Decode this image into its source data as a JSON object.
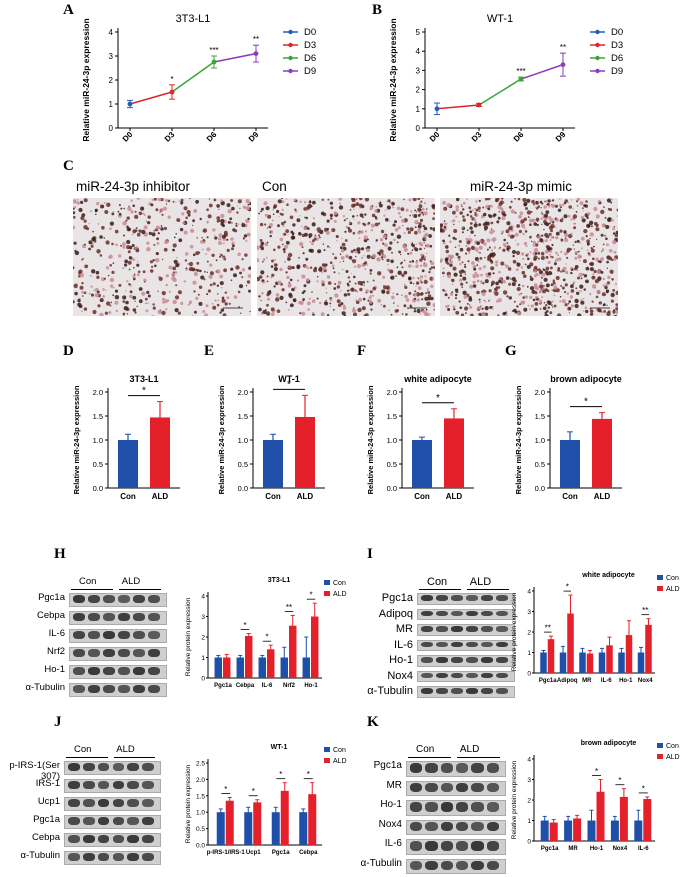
{
  "panels": {
    "A": {
      "letter": "A",
      "title": "3T3-L1",
      "ylabel": "Relative miR-24-3p expression",
      "legend": [
        "D0",
        "D3",
        "D6",
        "D9"
      ]
    },
    "B": {
      "letter": "B",
      "title": "WT-1",
      "ylabel": "Relative miR-24-3p expression",
      "legend": [
        "D0",
        "D3",
        "D6",
        "D9"
      ]
    },
    "C": {
      "letter": "C",
      "labels": [
        "miR-24-3p inhibitor",
        "Con",
        "miR-24-3p mimic"
      ]
    },
    "D": {
      "letter": "D",
      "title": "3T3-L1"
    },
    "E": {
      "letter": "E",
      "title": "WT-1"
    },
    "F": {
      "letter": "F",
      "title": "white adipocyte"
    },
    "G": {
      "letter": "G",
      "title": "brown adipocyte"
    },
    "H": {
      "letter": "H",
      "proteins": [
        "Pgc1a",
        "Cebpa",
        "IL-6",
        "Nrf2",
        "Ho-1",
        "α-Tubulin"
      ],
      "groups": [
        "Con",
        "ALD"
      ],
      "chart_title": "3T3-L1"
    },
    "I": {
      "letter": "I",
      "proteins": [
        "Pgc1a",
        "Adipoq",
        "MR",
        "IL-6",
        "Ho-1",
        "Nox4",
        "α-Tubulin"
      ],
      "groups": [
        "Con",
        "ALD"
      ],
      "chart_title": "white adipocyte"
    },
    "J": {
      "letter": "J",
      "proteins": [
        "p-IRS-1(Ser 307)",
        "IRS-1",
        "Ucp1",
        "Pgc1a",
        "Cebpa",
        "α-Tubulin"
      ],
      "groups": [
        "Con",
        "ALD"
      ],
      "chart_title": "WT-1"
    },
    "K": {
      "letter": "K",
      "proteins": [
        "Pgc1a",
        "MR",
        "Ho-1",
        "Nox4",
        "IL-6",
        "α-Tubulin"
      ],
      "groups": [
        "Con",
        "ALD"
      ],
      "chart_title": "brown adipocyte"
    }
  },
  "colors": {
    "d0": "#1f5fb5",
    "d3": "#e0252b",
    "d6": "#3aa53a",
    "d9": "#8a3cc0",
    "con": "#1f4fa8",
    "ald": "#e4202a"
  },
  "chart_data": [
    {
      "id": "A",
      "type": "line",
      "title": "3T3-L1",
      "ylabel": "Relative miR-24-3p expression",
      "x": [
        "D0",
        "D3",
        "D6",
        "D9"
      ],
      "values": [
        1.0,
        1.5,
        2.75,
        3.1
      ],
      "err": [
        0.15,
        0.3,
        0.25,
        0.35
      ],
      "ylim": [
        0,
        4
      ],
      "yticks": [
        0,
        1,
        2,
        3,
        4
      ],
      "sig": [
        "",
        "*",
        "***",
        "**"
      ]
    },
    {
      "id": "B",
      "type": "line",
      "title": "WT-1",
      "ylabel": "Relative miR-24-3p expression",
      "x": [
        "D0",
        "D3",
        "D6",
        "D9"
      ],
      "values": [
        1.0,
        1.2,
        2.55,
        3.3
      ],
      "err": [
        0.3,
        0.08,
        0.1,
        0.6
      ],
      "ylim": [
        0,
        5
      ],
      "yticks": [
        0,
        1,
        2,
        3,
        4,
        5
      ],
      "sig": [
        "",
        "",
        "***",
        "**"
      ]
    },
    {
      "id": "D",
      "type": "bar",
      "title": "3T3-L1",
      "ylabel": "Relative miR-24-3p expression",
      "categories": [
        "Con",
        "ALD"
      ],
      "values": [
        1.0,
        1.47
      ],
      "err": [
        0.12,
        0.33
      ],
      "ylim": [
        0,
        2.0
      ],
      "yticks": [
        "0.0",
        "0.5",
        "1.0",
        "1.5",
        "2.0"
      ],
      "sig": "*"
    },
    {
      "id": "E",
      "type": "bar",
      "title": "WT-1",
      "ylabel": "Relative miR-24-3p expression",
      "categories": [
        "Con",
        "ALD"
      ],
      "values": [
        1.0,
        1.48
      ],
      "err": [
        0.12,
        0.45
      ],
      "ylim": [
        0,
        2.0
      ],
      "yticks": [
        "0.0",
        "0.5",
        "1.0",
        "1.5",
        "2.0"
      ],
      "sig": "*"
    },
    {
      "id": "F",
      "type": "bar",
      "title": "white adipocyte",
      "ylabel": "Relative miR-24-3p expression",
      "categories": [
        "Con",
        "ALD"
      ],
      "values": [
        1.0,
        1.45
      ],
      "err": [
        0.06,
        0.2
      ],
      "ylim": [
        0,
        2.0
      ],
      "yticks": [
        "0.0",
        "0.5",
        "1.0",
        "1.5",
        "2.0"
      ],
      "sig": "*"
    },
    {
      "id": "G",
      "type": "bar",
      "title": "brown adipocyte",
      "ylabel": "Relative miR-24-3p expression",
      "categories": [
        "Con",
        "ALD"
      ],
      "values": [
        1.0,
        1.44
      ],
      "err": [
        0.17,
        0.13
      ],
      "ylim": [
        0,
        2.0
      ],
      "yticks": [
        "0.0",
        "0.5",
        "1.0",
        "1.5",
        "2.0"
      ],
      "sig": "*"
    },
    {
      "id": "H",
      "type": "bar",
      "title": "3T3-L1",
      "ylabel": "Relative protein expression",
      "categories": [
        "Pgc1a",
        "Cebpa",
        "IL-6",
        "Nrf2",
        "Ho-1"
      ],
      "series": [
        {
          "name": "Con",
          "values": [
            1.0,
            1.0,
            1.0,
            1.0,
            1.0
          ],
          "err": [
            0.1,
            0.1,
            0.1,
            0.5,
            1.0
          ]
        },
        {
          "name": "ALD",
          "values": [
            1.0,
            2.05,
            1.4,
            2.55,
            3.0
          ],
          "err": [
            0.15,
            0.12,
            0.2,
            0.5,
            0.65
          ]
        }
      ],
      "ylim": [
        0,
        4
      ],
      "yticks": [
        0,
        1,
        2,
        3,
        4
      ],
      "sig": [
        "",
        "*",
        "*",
        "**",
        "*"
      ],
      "legend": "top-right"
    },
    {
      "id": "I",
      "type": "bar",
      "title": "white adipocyte",
      "ylabel": "Relative protein expression",
      "categories": [
        "Pgc1a",
        "Adipoq",
        "MR",
        "IL-6",
        "Ho-1",
        "Nox4"
      ],
      "series": [
        {
          "name": "Con",
          "values": [
            1.0,
            1.0,
            1.0,
            1.0,
            1.0,
            1.0
          ],
          "err": [
            0.1,
            0.3,
            0.2,
            0.2,
            0.2,
            0.25
          ]
        },
        {
          "name": "ALD",
          "values": [
            1.65,
            2.9,
            0.95,
            1.35,
            1.85,
            2.35
          ],
          "err": [
            0.15,
            0.9,
            0.15,
            0.4,
            0.7,
            0.3
          ]
        }
      ],
      "ylim": [
        0,
        4
      ],
      "yticks": [
        0,
        1,
        2,
        3,
        4
      ],
      "sig": [
        "**",
        "*",
        "",
        "",
        "",
        "**"
      ],
      "legend": "top-right"
    },
    {
      "id": "J",
      "type": "bar",
      "title": "WT-1",
      "ylabel": "Relative protein expression",
      "categories": [
        "p-IRS-1/IRS-1",
        "Ucp1",
        "Pgc1a",
        "Cebpa"
      ],
      "series": [
        {
          "name": "Con",
          "values": [
            1.0,
            1.0,
            1.0,
            1.0
          ],
          "err": [
            0.1,
            0.15,
            0.15,
            0.1
          ]
        },
        {
          "name": "ALD",
          "values": [
            1.35,
            1.3,
            1.65,
            1.55
          ],
          "err": [
            0.1,
            0.08,
            0.25,
            0.35
          ]
        }
      ],
      "ylim": [
        0,
        2.5
      ],
      "yticks": [
        "0.0",
        "0.5",
        "1.0",
        "1.5",
        "2.0",
        "2.5"
      ],
      "sig": [
        "*",
        "*",
        "*",
        "*"
      ],
      "legend": "top-right"
    },
    {
      "id": "K",
      "type": "bar",
      "title": "brown adipocyte",
      "ylabel": "Relative protein expression",
      "categories": [
        "Pgc1a",
        "MR",
        "Ho-1",
        "Nox4",
        "IL-6"
      ],
      "series": [
        {
          "name": "Con",
          "values": [
            1.0,
            1.0,
            1.0,
            1.0,
            1.0
          ],
          "err": [
            0.2,
            0.2,
            0.5,
            0.2,
            0.5
          ]
        },
        {
          "name": "ALD",
          "values": [
            0.9,
            1.1,
            2.4,
            2.15,
            2.05
          ],
          "err": [
            0.15,
            0.15,
            0.6,
            0.4,
            0.1
          ]
        }
      ],
      "ylim": [
        0,
        4
      ],
      "yticks": [
        0,
        1,
        2,
        3,
        4
      ],
      "sig": [
        "",
        "",
        "*",
        "*",
        "*"
      ],
      "legend": "top-right"
    }
  ]
}
